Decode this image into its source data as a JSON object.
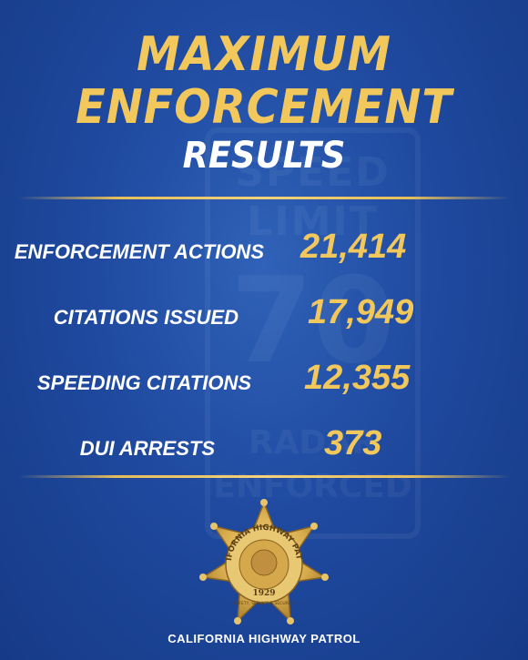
{
  "header": {
    "line1": "MAXIMUM",
    "line2": "ENFORCEMENT",
    "line3": "RESULTS"
  },
  "stats": [
    {
      "label": "ENFORCEMENT ACTIONS",
      "value": "21,414"
    },
    {
      "label": "CITATIONS ISSUED",
      "value": "17,949"
    },
    {
      "label": "SPEEDING CITATIONS",
      "value": "12,355"
    },
    {
      "label": "DUI ARRESTS",
      "value": "373"
    }
  ],
  "badge": {
    "ring_text": "CALIFORNIA HIGHWAY PATROL",
    "year": "1929",
    "motto": "SAFETY, SERVICE & SECURITY",
    "icon": "star-badge-icon"
  },
  "background_sign": {
    "line1": "SPEED",
    "line2": "LIMIT",
    "number": "70",
    "line4": "RADAR",
    "line5": "ENFORCED"
  },
  "footer": {
    "text": "CALIFORNIA HIGHWAY PATROL"
  },
  "colors": {
    "background": "#1f4aa0",
    "gold": "#f2c75c",
    "text": "#ffffff"
  }
}
